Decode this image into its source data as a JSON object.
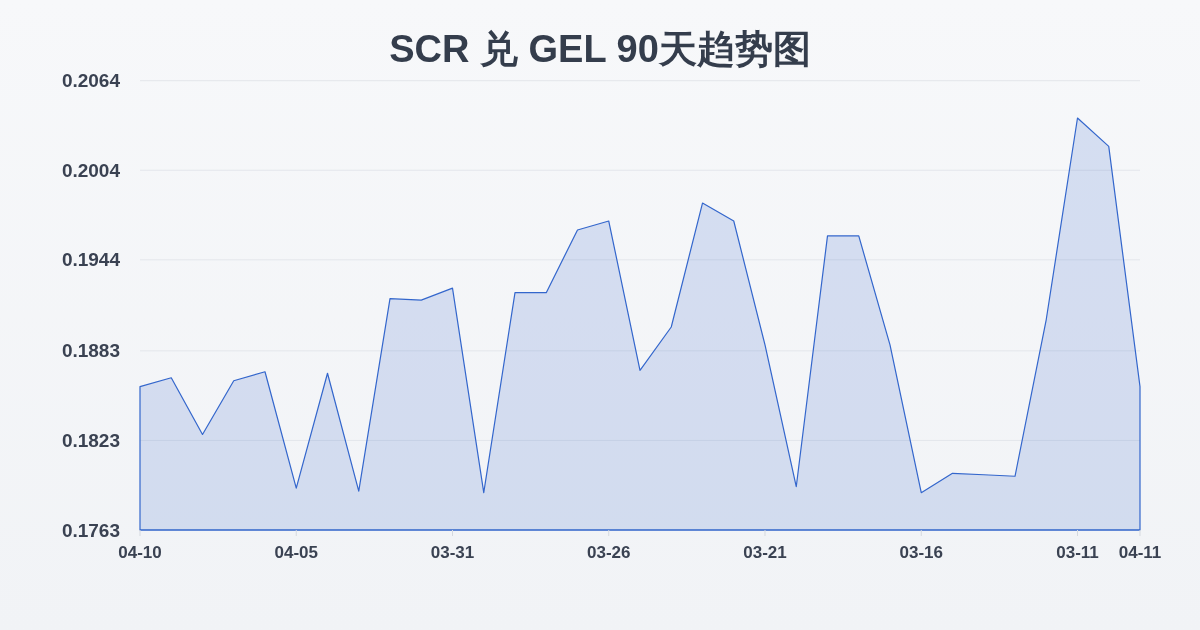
{
  "chart_data": {
    "type": "area",
    "title": "SCR 兑 GEL 90天趋势图",
    "categories": [
      "04-10",
      null,
      null,
      null,
      null,
      "04-05",
      null,
      null,
      null,
      null,
      "03-31",
      null,
      null,
      null,
      null,
      "03-26",
      null,
      null,
      null,
      null,
      "03-21",
      null,
      null,
      null,
      null,
      "03-16",
      null,
      null,
      null,
      null,
      "03-11",
      null,
      "04-11"
    ],
    "series": [
      {
        "color": "#3366cc",
        "values": [
          0.1859,
          0.1865,
          0.1827,
          0.1863,
          0.1869,
          0.1791,
          0.1868,
          0.1789,
          0.1918,
          0.1917,
          0.1925,
          0.1788,
          0.1922,
          0.1922,
          0.1964,
          0.197,
          0.187,
          0.1899,
          0.1982,
          0.197,
          0.1887,
          0.1792,
          0.196,
          0.196,
          0.1887,
          0.1788,
          0.1801,
          0.18,
          0.1799,
          0.1904,
          0.2039,
          0.202,
          0.1859
        ]
      }
    ],
    "ylim": [
      0.1763,
      0.2064
    ],
    "yticks": [
      0.1763,
      0.1823,
      0.1883,
      0.1944,
      0.2004,
      0.2064
    ],
    "grid": "y"
  }
}
